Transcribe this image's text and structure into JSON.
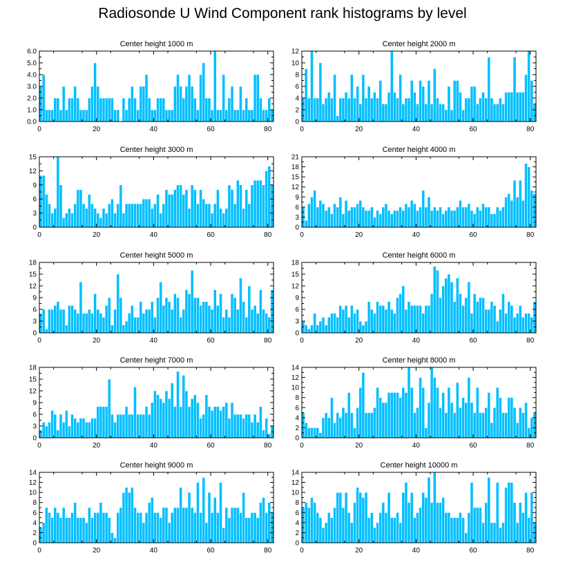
{
  "figure": {
    "title": "Radiosonde U Wind Component rank histograms by level",
    "bar_color": "#00bfff",
    "bar_edge_color": "#ffffff"
  },
  "chart_data": [
    {
      "type": "bar",
      "title": "Center height 1000 m",
      "xlim": [
        0,
        82
      ],
      "ylim": [
        0,
        6
      ],
      "yticks": [
        "0.0",
        "1.0",
        "2.0",
        "3.0",
        "4.0",
        "5.0",
        "6.0"
      ],
      "xticks": [
        "0",
        "20",
        "40",
        "60",
        "80"
      ],
      "values": [
        3,
        4,
        1,
        1,
        1,
        2,
        2,
        1,
        3,
        1,
        2,
        2,
        3,
        2,
        1,
        1,
        1,
        2,
        3,
        5,
        3,
        2,
        2,
        2,
        2,
        2,
        1,
        1,
        0,
        2,
        1,
        2,
        3,
        2,
        1,
        3,
        3,
        4,
        2,
        1,
        1,
        2,
        2,
        2,
        1,
        1,
        1,
        3,
        4,
        3,
        2,
        3,
        4,
        3,
        2,
        1,
        4,
        5,
        2,
        2,
        1,
        6,
        1,
        1,
        4,
        1,
        2,
        3,
        1,
        1,
        3,
        1,
        2,
        1,
        1,
        4,
        4,
        2,
        1,
        1,
        2,
        1
      ]
    },
    {
      "type": "bar",
      "title": "Center height 2000 m",
      "xlim": [
        0,
        82
      ],
      "ylim": [
        0,
        12
      ],
      "yticks": [
        "0",
        "2",
        "4",
        "6",
        "8",
        "10",
        "12"
      ],
      "xticks": [
        "0",
        "20",
        "40",
        "60",
        "80"
      ],
      "values": [
        4,
        9,
        4,
        12,
        4,
        4,
        10,
        3,
        4,
        5,
        4,
        8,
        1,
        4,
        4,
        5,
        4,
        8,
        4,
        6,
        3,
        8,
        4,
        6,
        4,
        5,
        4,
        7,
        3,
        3,
        5,
        12,
        5,
        4,
        8,
        3,
        4,
        4,
        7,
        5,
        3,
        7,
        6,
        3,
        7,
        3,
        9,
        4,
        3,
        3,
        2,
        6,
        2,
        7,
        7,
        5,
        2,
        4,
        4,
        6,
        6,
        3,
        4,
        5,
        4,
        11,
        4,
        3,
        3,
        4,
        3,
        5,
        5,
        5,
        11,
        5,
        5,
        5,
        8,
        12,
        7,
        3
      ]
    },
    {
      "type": "bar",
      "title": "Center height 3000 m",
      "xlim": [
        0,
        82
      ],
      "ylim": [
        0,
        15
      ],
      "yticks": [
        "0",
        "3",
        "6",
        "9",
        "12",
        "15"
      ],
      "xticks": [
        "0",
        "20",
        "40",
        "60",
        "80"
      ],
      "values": [
        11,
        11,
        7,
        5,
        3,
        4,
        15,
        9,
        2,
        3,
        4,
        3,
        5,
        8,
        8,
        5,
        4,
        7,
        5,
        4,
        3,
        2,
        4,
        3,
        5,
        6,
        3,
        5,
        9,
        3,
        5,
        5,
        5,
        5,
        5,
        5,
        6,
        6,
        6,
        4,
        5,
        7,
        3,
        5,
        8,
        7,
        7,
        8,
        9,
        9,
        7,
        8,
        4,
        9,
        8,
        5,
        8,
        6,
        5,
        5,
        3,
        5,
        8,
        4,
        3,
        4,
        9,
        8,
        5,
        10,
        9,
        4,
        8,
        5,
        9,
        10,
        10,
        10,
        9,
        12,
        13,
        9
      ]
    },
    {
      "type": "bar",
      "title": "Center height 4000 m",
      "xlim": [
        0,
        82
      ],
      "ylim": [
        0,
        21
      ],
      "yticks": [
        "0",
        "3",
        "6",
        "9",
        "12",
        "15",
        "18",
        "21"
      ],
      "xticks": [
        "0",
        "20",
        "40",
        "60",
        "80"
      ],
      "values": [
        6,
        2,
        7,
        9,
        11,
        6,
        8,
        7,
        5,
        6,
        4,
        7,
        6,
        9,
        4,
        8,
        5,
        6,
        6,
        7,
        8,
        6,
        5,
        5,
        6,
        3,
        5,
        4,
        6,
        7,
        5,
        4,
        5,
        5,
        6,
        5,
        7,
        6,
        8,
        7,
        5,
        6,
        11,
        6,
        9,
        5,
        6,
        5,
        6,
        4,
        5,
        6,
        5,
        5,
        6,
        8,
        6,
        6,
        7,
        5,
        4,
        6,
        5,
        7,
        6,
        6,
        4,
        4,
        6,
        5,
        6,
        9,
        10,
        8,
        14,
        9,
        14,
        8,
        19,
        18,
        11,
        10
      ]
    },
    {
      "type": "bar",
      "title": "Center height 5000 m",
      "xlim": [
        0,
        82
      ],
      "ylim": [
        0,
        18
      ],
      "yticks": [
        "0",
        "3",
        "6",
        "9",
        "12",
        "15",
        "18"
      ],
      "xticks": [
        "0",
        "20",
        "40",
        "60",
        "80"
      ],
      "values": [
        5,
        6,
        1,
        6,
        6,
        7,
        8,
        6,
        6,
        2,
        7,
        7,
        6,
        5,
        13,
        5,
        5,
        6,
        5,
        10,
        6,
        5,
        4,
        7,
        9,
        2,
        6,
        15,
        9,
        2,
        3,
        5,
        7,
        4,
        4,
        8,
        5,
        6,
        6,
        8,
        4,
        9,
        13,
        7,
        9,
        8,
        6,
        10,
        9,
        4,
        6,
        11,
        10,
        16,
        9,
        9,
        7,
        8,
        8,
        7,
        6,
        11,
        7,
        10,
        4,
        6,
        4,
        10,
        9,
        6,
        14,
        8,
        4,
        12,
        6,
        7,
        5,
        11,
        6,
        5,
        4,
        11
      ]
    },
    {
      "type": "bar",
      "title": "Center height 6000 m",
      "xlim": [
        0,
        82
      ],
      "ylim": [
        0,
        18
      ],
      "yticks": [
        "0",
        "3",
        "6",
        "9",
        "12",
        "15",
        "18"
      ],
      "xticks": [
        "0",
        "20",
        "40",
        "60",
        "80"
      ],
      "values": [
        3,
        2,
        1,
        2,
        5,
        2,
        3,
        4,
        2,
        4,
        5,
        5,
        4,
        7,
        6,
        7,
        4,
        7,
        5,
        6,
        3,
        2,
        3,
        8,
        6,
        5,
        8,
        7,
        7,
        6,
        8,
        6,
        5,
        9,
        10,
        12,
        6,
        8,
        7,
        7,
        7,
        7,
        5,
        7,
        7,
        10,
        17,
        16,
        9,
        12,
        14,
        15,
        13,
        8,
        14,
        10,
        7,
        9,
        13,
        5,
        10,
        8,
        9,
        9,
        6,
        6,
        8,
        7,
        3,
        6,
        10,
        5,
        8,
        7,
        4,
        5,
        7,
        4,
        5,
        5,
        4,
        8
      ]
    },
    {
      "type": "bar",
      "title": "Center height 7000 m",
      "xlim": [
        0,
        82
      ],
      "ylim": [
        0,
        18
      ],
      "yticks": [
        "0",
        "3",
        "6",
        "9",
        "12",
        "15",
        "18"
      ],
      "xticks": [
        "0",
        "20",
        "40",
        "60",
        "80"
      ],
      "values": [
        2,
        4,
        3,
        4,
        7,
        6,
        2,
        6,
        4,
        7,
        3,
        6,
        5,
        4,
        5,
        5,
        4,
        4,
        5,
        5,
        8,
        8,
        8,
        8,
        15,
        6,
        4,
        6,
        6,
        6,
        8,
        6,
        6,
        13,
        6,
        6,
        6,
        8,
        6,
        9,
        12,
        11,
        10,
        9,
        12,
        10,
        14,
        8,
        17,
        8,
        16,
        12,
        8,
        10,
        11,
        9,
        5,
        6,
        11,
        8,
        7,
        8,
        8,
        7,
        8,
        9,
        5,
        9,
        6,
        6,
        6,
        5,
        6,
        6,
        4,
        6,
        4,
        8,
        2,
        5,
        1,
        3
      ]
    },
    {
      "type": "bar",
      "title": "Center height 8000 m",
      "xlim": [
        0,
        82
      ],
      "ylim": [
        0,
        14
      ],
      "yticks": [
        "0",
        "2",
        "4",
        "6",
        "8",
        "10",
        "12",
        "14"
      ],
      "xticks": [
        "0",
        "20",
        "40",
        "60",
        "80"
      ],
      "values": [
        5,
        3,
        2,
        2,
        2,
        2,
        1,
        4,
        5,
        4,
        8,
        3,
        5,
        4,
        6,
        5,
        9,
        5,
        2,
        6,
        10,
        13,
        5,
        5,
        5,
        6,
        10,
        8,
        7,
        7,
        9,
        9,
        9,
        9,
        8,
        10,
        9,
        14,
        10,
        5,
        6,
        12,
        10,
        2,
        7,
        14,
        12,
        10,
        6,
        9,
        5,
        10,
        7,
        5,
        11,
        6,
        8,
        7,
        12,
        7,
        5,
        10,
        5,
        5,
        6,
        9,
        3,
        6,
        10,
        8,
        5,
        5,
        8,
        8,
        6,
        3,
        6,
        5,
        7,
        2,
        4,
        5
      ]
    },
    {
      "type": "bar",
      "title": "Center height 9000 m",
      "xlim": [
        0,
        82
      ],
      "ylim": [
        0,
        14
      ],
      "yticks": [
        "0",
        "2",
        "4",
        "6",
        "8",
        "10",
        "12",
        "14"
      ],
      "xticks": [
        "0",
        "20",
        "40",
        "60",
        "80"
      ],
      "values": [
        3,
        4,
        7,
        6,
        5,
        7,
        6,
        5,
        7,
        5,
        5,
        6,
        8,
        5,
        5,
        5,
        4,
        7,
        5,
        6,
        6,
        8,
        6,
        6,
        5,
        2,
        1,
        6,
        7,
        10,
        11,
        10,
        11,
        7,
        6,
        6,
        4,
        6,
        8,
        9,
        6,
        6,
        5,
        7,
        7,
        4,
        6,
        7,
        7,
        11,
        7,
        7,
        10,
        7,
        6,
        12,
        6,
        13,
        4,
        10,
        6,
        9,
        6,
        12,
        3,
        7,
        5,
        7,
        7,
        7,
        6,
        10,
        5,
        5,
        6,
        6,
        5,
        8,
        9,
        6,
        8,
        6
      ]
    },
    {
      "type": "bar",
      "title": "Center height 10000 m",
      "xlim": [
        0,
        82
      ],
      "ylim": [
        0,
        14
      ],
      "yticks": [
        "0",
        "2",
        "4",
        "6",
        "8",
        "10",
        "12",
        "14"
      ],
      "xticks": [
        "0",
        "20",
        "40",
        "60",
        "80"
      ],
      "values": [
        7,
        8,
        7,
        9,
        8,
        6,
        5,
        3,
        4,
        6,
        5,
        7,
        10,
        10,
        7,
        10,
        6,
        4,
        8,
        11,
        10,
        9,
        10,
        5,
        6,
        3,
        4,
        6,
        8,
        6,
        10,
        5,
        5,
        6,
        4,
        10,
        12,
        8,
        10,
        5,
        6,
        7,
        10,
        9,
        13,
        8,
        14,
        8,
        8,
        9,
        6,
        6,
        5,
        5,
        5,
        6,
        5,
        2,
        6,
        12,
        7,
        7,
        7,
        4,
        8,
        13,
        4,
        4,
        12,
        3,
        4,
        11,
        12,
        12,
        8,
        4,
        8,
        6,
        10,
        5,
        10,
        4
      ]
    }
  ]
}
